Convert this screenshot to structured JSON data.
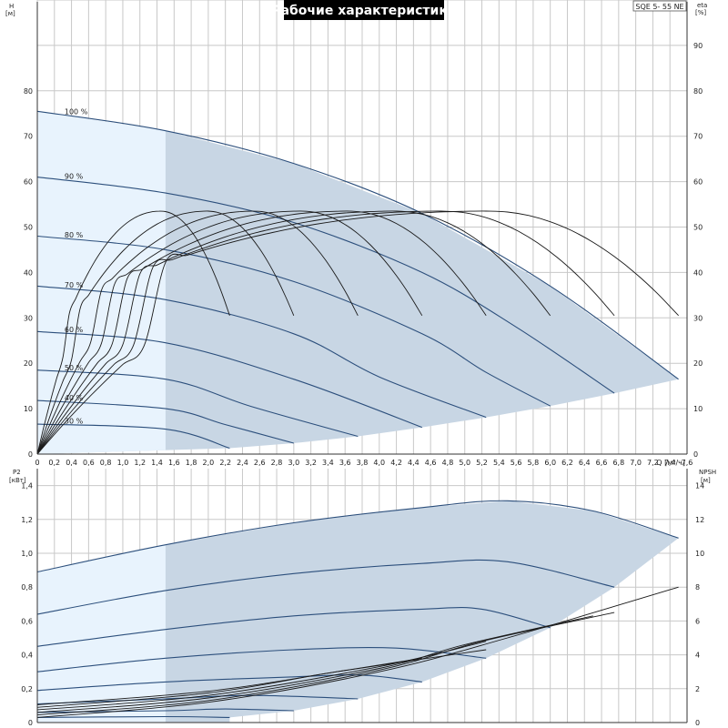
{
  "title": "Рабочие характеристики",
  "model": "SQE 5- 55 NE",
  "colors": {
    "region_light": "#e8f3fd",
    "region_dark": "#c8d6e4",
    "curve_blue": "#2c4f7c",
    "eff_curve": "#1a1a1a",
    "grid": "#c8c8c8"
  },
  "chart_data": [
    {
      "type": "line",
      "name": "head",
      "ylabel_top": "H",
      "ylabel_unit": "[м]",
      "y2label_top": "eta",
      "y2label_unit": "[%]",
      "xlabel": "Q [м³/ч]",
      "xlim": [
        0,
        7.6
      ],
      "ylim": [
        0,
        100
      ],
      "y2lim": [
        0,
        100
      ],
      "x_ticks": [
        "0",
        "0,2",
        "0,4",
        "0,6",
        "0,8",
        "1,0",
        "1,2",
        "1,4",
        "1,6",
        "1,8",
        "2,0",
        "2,2",
        "2,4",
        "2,6",
        "2,8",
        "3,0",
        "3,2",
        "3,4",
        "3,6",
        "3,8",
        "4,0",
        "4,2",
        "4,4",
        "4,6",
        "4,8",
        "5,0",
        "5,2",
        "5,4",
        "5,6",
        "5,8",
        "6,0",
        "6,2",
        "6,4",
        "6,6",
        "6,8",
        "7,0",
        "7,2",
        "7,4",
        "7,6"
      ],
      "y_ticks": [
        "0",
        "10",
        "20",
        "30",
        "40",
        "50",
        "60",
        "70",
        "80"
      ],
      "y2_ticks": [
        "0",
        "10",
        "20",
        "30",
        "40",
        "50",
        "60",
        "70",
        "80",
        "90"
      ],
      "light_region_xmax": 1.5,
      "speed_labels": [
        "100 %",
        "90 %",
        "80 %",
        "70 %",
        "60 %",
        "50 %",
        "40 %",
        "30 %"
      ],
      "head_curves": [
        {
          "label": "100 %",
          "points": [
            [
              0,
              75.5
            ],
            [
              1.5,
              71.2
            ],
            [
              3.0,
              64.0
            ],
            [
              4.5,
              53.0
            ],
            [
              6.0,
              37.0
            ],
            [
              7.5,
              16.5
            ]
          ]
        },
        {
          "label": "90 %",
          "points": [
            [
              0,
              61.0
            ],
            [
              1.5,
              57.5
            ],
            [
              3.0,
              51.0
            ],
            [
              4.5,
              40.0
            ],
            [
              5.6,
              28.0
            ],
            [
              6.75,
              13.4
            ]
          ]
        },
        {
          "label": "80 %",
          "points": [
            [
              0,
              48.0
            ],
            [
              1.5,
              45.0
            ],
            [
              3.0,
              38.0
            ],
            [
              4.5,
              26.5
            ],
            [
              5.25,
              18.0
            ],
            [
              6.0,
              10.6
            ]
          ]
        },
        {
          "label": "70 %",
          "points": [
            [
              0,
              37.0
            ],
            [
              1.5,
              34.0
            ],
            [
              3.0,
              26.5
            ],
            [
              4.0,
              17.0
            ],
            [
              5.25,
              8.1
            ]
          ]
        },
        {
          "label": "60 %",
          "points": [
            [
              0,
              27.0
            ],
            [
              1.5,
              24.5
            ],
            [
              3.0,
              16.5
            ],
            [
              4.5,
              5.9
            ]
          ]
        },
        {
          "label": "50 %",
          "points": [
            [
              0,
              18.5
            ],
            [
              1.5,
              16.5
            ],
            [
              2.5,
              10.5
            ],
            [
              3.75,
              3.9
            ]
          ]
        },
        {
          "label": "40 %",
          "points": [
            [
              0,
              11.8
            ],
            [
              1.5,
              10.0
            ],
            [
              2.2,
              6.5
            ],
            [
              3.0,
              2.4
            ]
          ]
        },
        {
          "label": "30 %",
          "points": [
            [
              0,
              6.6
            ],
            [
              1.5,
              5.5
            ],
            [
              2.25,
              1.3
            ]
          ]
        }
      ],
      "efficiency_curves": [
        {
          "start": 10.0,
          "peak_x": 1.45,
          "peak": 53.5,
          "end_x": 2.25
        },
        {
          "start": 13.0,
          "peak_x": 2.0,
          "peak": 53.5,
          "end_x": 3.0
        },
        {
          "start": 16.0,
          "peak_x": 2.55,
          "peak": 53.5,
          "end_x": 3.75
        },
        {
          "start": 19.0,
          "peak_x": 3.1,
          "peak": 53.5,
          "end_x": 4.5
        },
        {
          "start": 22.0,
          "peak_x": 3.65,
          "peak": 53.5,
          "end_x": 5.25
        },
        {
          "start": 24.5,
          "peak_x": 4.2,
          "peak": 53.5,
          "end_x": 6.0
        },
        {
          "start": 27.5,
          "peak_x": 4.75,
          "peak": 53.5,
          "end_x": 6.75
        },
        {
          "start": 30.0,
          "peak_x": 5.3,
          "peak": 53.5,
          "end_x": 7.5
        }
      ],
      "efficiency_end_value": 30.5
    },
    {
      "type": "line",
      "name": "power",
      "ylabel_top": "P2",
      "ylabel_unit": "[кВт]",
      "y2label_top": "NPSH",
      "y2label_unit": "[м]",
      "xlim": [
        0,
        7.6
      ],
      "ylim": [
        0,
        1.5
      ],
      "y2lim": [
        0,
        15
      ],
      "y_ticks": [
        "0",
        "0,2",
        "0,4",
        "0,6",
        "0,8",
        "1,0",
        "1,2",
        "1,4"
      ],
      "y2_ticks": [
        "0",
        "2",
        "4",
        "6",
        "8",
        "10",
        "12",
        "14"
      ],
      "power_curves": [
        {
          "label": "100 %",
          "points": [
            [
              0,
              0.89
            ],
            [
              1.5,
              1.05
            ],
            [
              3.0,
              1.18
            ],
            [
              4.5,
              1.27
            ],
            [
              5.5,
              1.31
            ],
            [
              6.5,
              1.25
            ],
            [
              7.5,
              1.09
            ]
          ]
        },
        {
          "label": "90 %",
          "points": [
            [
              0,
              0.64
            ],
            [
              1.5,
              0.78
            ],
            [
              3.0,
              0.88
            ],
            [
              4.5,
              0.94
            ],
            [
              5.5,
              0.95
            ],
            [
              6.75,
              0.8
            ]
          ]
        },
        {
          "label": "80 %",
          "points": [
            [
              0,
              0.45
            ],
            [
              1.5,
              0.55
            ],
            [
              3.0,
              0.63
            ],
            [
              4.5,
              0.67
            ],
            [
              5.2,
              0.67
            ],
            [
              6.0,
              0.56
            ]
          ]
        },
        {
          "label": "70 %",
          "points": [
            [
              0,
              0.3
            ],
            [
              1.5,
              0.38
            ],
            [
              3.0,
              0.43
            ],
            [
              4.2,
              0.44
            ],
            [
              5.25,
              0.38
            ]
          ]
        },
        {
          "label": "60 %",
          "points": [
            [
              0,
              0.19
            ],
            [
              1.5,
              0.24
            ],
            [
              3.0,
              0.27
            ],
            [
              3.8,
              0.28
            ],
            [
              4.5,
              0.24
            ]
          ]
        },
        {
          "label": "50 %",
          "points": [
            [
              0,
              0.11
            ],
            [
              1.5,
              0.14
            ],
            [
              2.5,
              0.16
            ],
            [
              3.75,
              0.14
            ]
          ]
        },
        {
          "label": "40 %",
          "points": [
            [
              0,
              0.06
            ],
            [
              1.5,
              0.07
            ],
            [
              2.2,
              0.08
            ],
            [
              3.0,
              0.07
            ]
          ]
        },
        {
          "label": "30 %",
          "points": [
            [
              0,
              0.03
            ],
            [
              1.5,
              0.035
            ],
            [
              2.25,
              0.03
            ]
          ]
        }
      ],
      "npsh_curves": [
        {
          "points": [
            [
              0,
              0.3
            ],
            [
              2.0,
              1.2
            ],
            [
              4.0,
              3.0
            ],
            [
              5.5,
              5.0
            ],
            [
              7.5,
              8.0
            ]
          ]
        },
        {
          "points": [
            [
              0,
              0.45
            ],
            [
              2.0,
              1.3
            ],
            [
              4.0,
              3.1
            ],
            [
              5.2,
              4.8
            ],
            [
              6.75,
              6.5
            ]
          ]
        },
        {
          "points": [
            [
              0,
              0.6
            ],
            [
              2.0,
              1.45
            ],
            [
              4.0,
              3.2
            ],
            [
              5.0,
              4.6
            ],
            [
              6.5,
              6.3
            ]
          ]
        },
        {
          "points": [
            [
              0,
              0.75
            ],
            [
              2.0,
              1.6
            ],
            [
              4.0,
              3.3
            ],
            [
              5.25,
              4.8
            ]
          ]
        },
        {
          "points": [
            [
              0,
              0.9
            ],
            [
              2.0,
              1.75
            ],
            [
              3.5,
              3.0
            ],
            [
              5.25,
              4.3
            ]
          ]
        },
        {
          "points": [
            [
              0,
              1.05
            ],
            [
              2.0,
              1.85
            ],
            [
              3.5,
              3.0
            ],
            [
              4.5,
              3.8
            ]
          ]
        }
      ]
    }
  ]
}
